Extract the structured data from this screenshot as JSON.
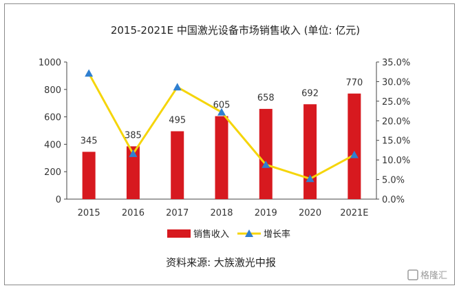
{
  "chart_data": {
    "type": "bar+line",
    "title": "2015-2021E 中国激光设备市场销售收入 (单位: 亿元)",
    "categories": [
      "2015",
      "2016",
      "2017",
      "2018",
      "2019",
      "2020",
      "2021E"
    ],
    "series": [
      {
        "name": "销售收入",
        "type": "bar",
        "axis": "left",
        "color": "#d7191f",
        "values": [
          345,
          385,
          495,
          605,
          658,
          692,
          770
        ]
      },
      {
        "name": "增长率",
        "type": "line",
        "axis": "right",
        "color": "#f5d50a",
        "marker_color": "#2f7fd0",
        "values": [
          32.1,
          11.6,
          28.6,
          22.2,
          8.8,
          5.2,
          11.3
        ]
      }
    ],
    "data_labels": [
      "345",
      "385",
      "495",
      "605",
      "658",
      "692",
      "770"
    ],
    "y_left": {
      "ylim": [
        0,
        1000
      ],
      "ticks": [
        0,
        200,
        400,
        600,
        800,
        1000
      ],
      "tick_labels": [
        "0",
        "200",
        "400",
        "600",
        "800",
        "1000"
      ]
    },
    "y_right": {
      "ylim": [
        0,
        35
      ],
      "ticks": [
        0,
        5,
        10,
        15,
        20,
        25,
        30,
        35
      ],
      "tick_labels": [
        "0.0%",
        "5.0%",
        "10.0%",
        "15.0%",
        "20.0%",
        "25.0%",
        "30.0%",
        "35.0%"
      ]
    },
    "grid": false,
    "legend": {
      "position": "bottom",
      "entries": [
        "销售收入",
        "增长率"
      ]
    }
  },
  "source": "资料来源:  大族激光中报",
  "watermark": "格隆汇"
}
